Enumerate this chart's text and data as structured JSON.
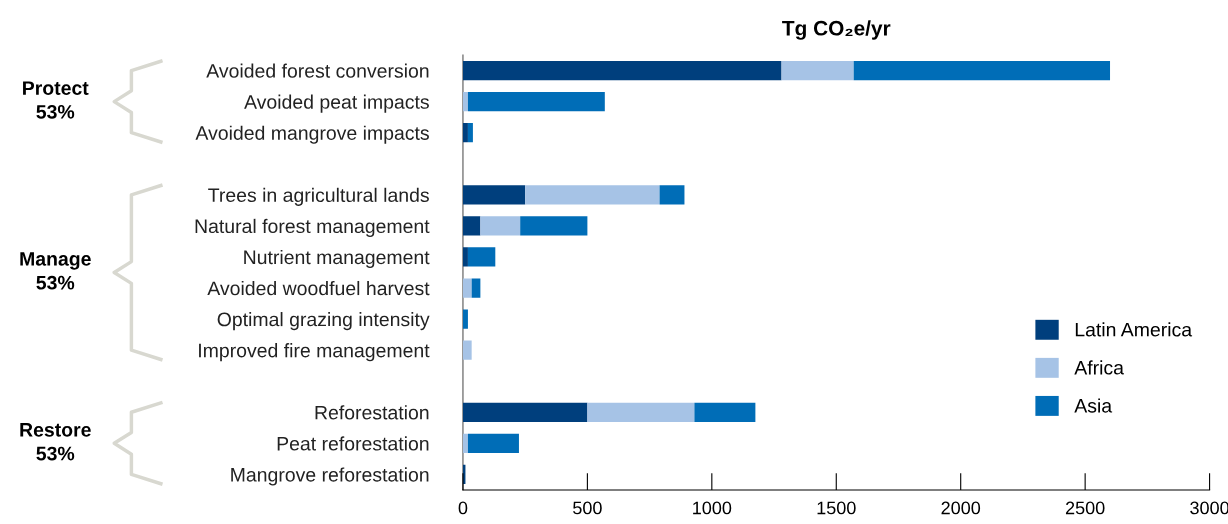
{
  "chart_data": {
    "type": "bar",
    "orientation": "horizontal",
    "stacked": true,
    "xlabel": "Tg CO₂e/yr",
    "categories": [
      "Avoided forest conversion",
      "Avoided peat impacts",
      "Avoided mangrove impacts",
      null,
      "Trees in agricultural lands",
      "Natural forest management",
      "Nutrient management",
      "Avoided woodfuel harvest",
      "Optimal grazing intensity",
      "Improved fire management",
      null,
      "Reforestation",
      "Peat reforestation",
      "Mangrove reforestation"
    ],
    "series": [
      {
        "name": "Latin America",
        "color": "#003f7d",
        "values": [
          1280,
          0,
          20,
          null,
          250,
          70,
          20,
          0,
          0,
          0,
          null,
          500,
          0,
          10
        ]
      },
      {
        "name": "Africa",
        "color": "#a6c3e6",
        "values": [
          290,
          20,
          0,
          null,
          540,
          160,
          0,
          35,
          0,
          35,
          null,
          430,
          20,
          0
        ]
      },
      {
        "name": "Asia",
        "color": "#006db7",
        "values": [
          1030,
          550,
          20,
          null,
          100,
          270,
          110,
          35,
          20,
          0,
          null,
          245,
          205,
          0
        ]
      }
    ],
    "xlim": [
      0,
      3000
    ],
    "xticks": [
      0,
      500,
      1000,
      1500,
      2000,
      2500,
      3000
    ],
    "grid": false,
    "legend": "right",
    "annotations": [
      "Protect\n53%",
      "Manage\n53%",
      "Restore\n53%"
    ]
  }
}
